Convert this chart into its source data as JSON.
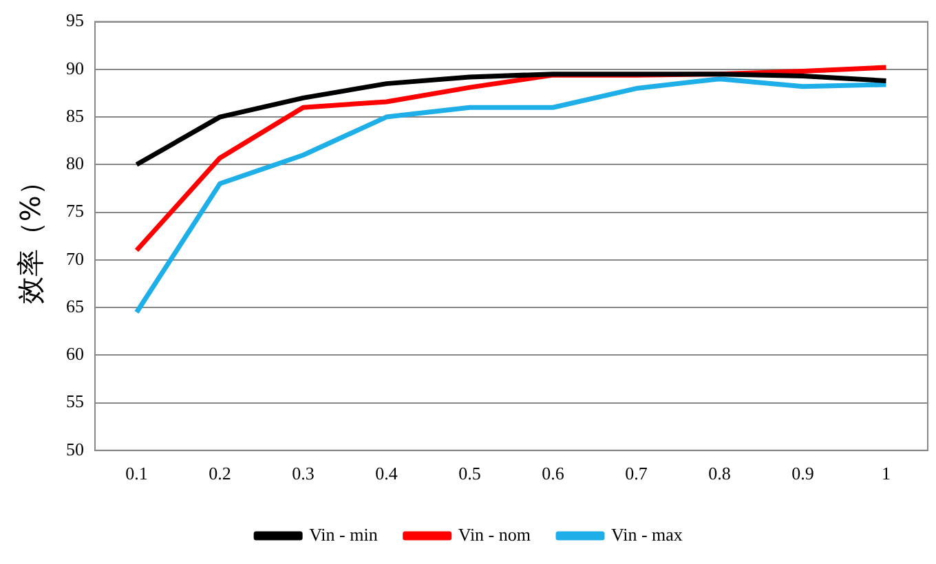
{
  "chart_data": {
    "type": "line",
    "ylabel": "效率（%）",
    "categories": [
      "0.1",
      "0.2",
      "0.3",
      "0.4",
      "0.5",
      "0.6",
      "0.7",
      "0.8",
      "0.9",
      "1"
    ],
    "series": [
      {
        "name": "Vin - min",
        "color": "#000000",
        "values": [
          80,
          85,
          87,
          88.5,
          89.2,
          89.5,
          89.5,
          89.5,
          89.3,
          88.8
        ]
      },
      {
        "name": "Vin - nom",
        "color": "#ff0000",
        "values": [
          71,
          80.7,
          86,
          86.6,
          88.1,
          89.4,
          89.4,
          89.5,
          89.8,
          90.2
        ]
      },
      {
        "name": "Vin - max",
        "color": "#1eaee8",
        "values": [
          64.5,
          78,
          81,
          85,
          86,
          86,
          88,
          89,
          88.2,
          88.4
        ]
      }
    ],
    "ylim": [
      50,
      95
    ],
    "yticks": [
      50,
      55,
      60,
      65,
      70,
      75,
      80,
      85,
      90,
      95
    ],
    "grid": "y",
    "legend": "bottom",
    "marker": "none",
    "line_style": "solid"
  }
}
